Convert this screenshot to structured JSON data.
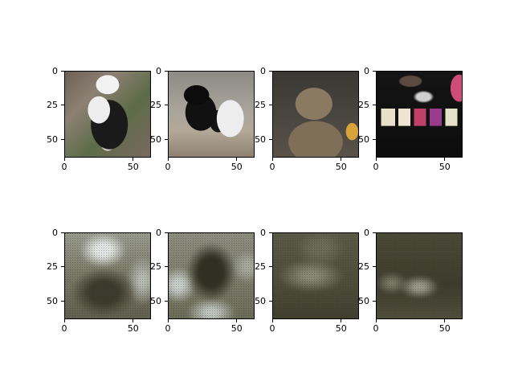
{
  "chart_data": [
    {
      "type": "image",
      "row": 1,
      "col": 1,
      "content": "panda photograph",
      "xlim": [
        0,
        63
      ],
      "ylim": [
        63,
        0
      ],
      "xticks": [
        0,
        50
      ],
      "yticks": [
        0,
        25,
        50
      ],
      "xtick_labels": [
        "0",
        "50"
      ],
      "ytick_labels": [
        "0",
        "25",
        "50"
      ]
    },
    {
      "type": "image",
      "row": 1,
      "col": 2,
      "content": "colobus monkey photograph",
      "xlim": [
        0,
        63
      ],
      "ylim": [
        63,
        0
      ],
      "xticks": [
        0,
        50
      ],
      "yticks": [
        0,
        25,
        50
      ],
      "xtick_labels": [
        "0",
        "50"
      ],
      "ytick_labels": [
        "0",
        "25",
        "50"
      ]
    },
    {
      "type": "image",
      "row": 1,
      "col": 3,
      "content": "tabby cat photograph",
      "xlim": [
        0,
        63
      ],
      "ylim": [
        63,
        0
      ],
      "xticks": [
        0,
        50
      ],
      "yticks": [
        0,
        25,
        50
      ],
      "xtick_labels": [
        "0",
        "50"
      ],
      "ytick_labels": [
        "0",
        "25",
        "50"
      ]
    },
    {
      "type": "image",
      "row": 1,
      "col": 4,
      "content": "keyboard keys photograph",
      "xlim": [
        0,
        63
      ],
      "ylim": [
        63,
        0
      ],
      "xticks": [
        0,
        50
      ],
      "yticks": [
        0,
        25,
        50
      ],
      "xtick_labels": [
        "0",
        "50"
      ],
      "ytick_labels": [
        "0",
        "25",
        "50"
      ]
    },
    {
      "type": "image",
      "row": 2,
      "col": 1,
      "content": "blurry reconstruction",
      "xlim": [
        0,
        63
      ],
      "ylim": [
        63,
        0
      ],
      "xticks": [
        0,
        50
      ],
      "yticks": [
        0,
        25,
        50
      ],
      "xtick_labels": [
        "0",
        "50"
      ],
      "ytick_labels": [
        "0",
        "25",
        "50"
      ]
    },
    {
      "type": "image",
      "row": 2,
      "col": 2,
      "content": "blurry reconstruction",
      "xlim": [
        0,
        63
      ],
      "ylim": [
        63,
        0
      ],
      "xticks": [
        0,
        50
      ],
      "yticks": [
        0,
        25,
        50
      ],
      "xtick_labels": [
        "0",
        "50"
      ],
      "ytick_labels": [
        "0",
        "25",
        "50"
      ]
    },
    {
      "type": "image",
      "row": 2,
      "col": 3,
      "content": "blurry reconstruction",
      "xlim": [
        0,
        63
      ],
      "ylim": [
        63,
        0
      ],
      "xticks": [
        0,
        50
      ],
      "yticks": [
        0,
        25,
        50
      ],
      "xtick_labels": [
        "0",
        "50"
      ],
      "ytick_labels": [
        "0",
        "25",
        "50"
      ]
    },
    {
      "type": "image",
      "row": 2,
      "col": 4,
      "content": "blurry reconstruction",
      "xlim": [
        0,
        63
      ],
      "ylim": [
        63,
        0
      ],
      "xticks": [
        0,
        50
      ],
      "yticks": [
        0,
        25,
        50
      ],
      "xtick_labels": [
        "0",
        "50"
      ],
      "ytick_labels": [
        "0",
        "25",
        "50"
      ]
    }
  ]
}
